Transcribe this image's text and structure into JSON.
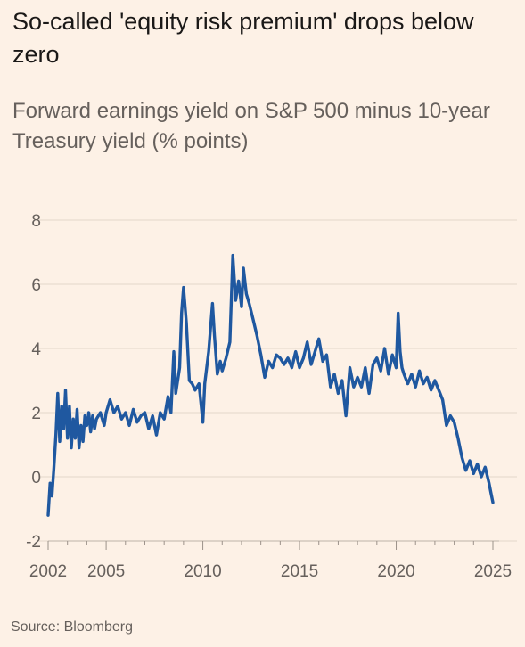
{
  "title": "So-called 'equity risk premium' drops below zero",
  "subtitle": "Forward earnings yield on S&P 500 minus 10-year Treasury yield (% points)",
  "source": "Source: Bloomberg",
  "colors": {
    "background": "#fdf1e6",
    "line": "#1f58a0",
    "grid": "#e3d7cb",
    "text": "#66605c"
  },
  "chart_data": {
    "type": "line",
    "title": "So-called 'equity risk premium' drops below zero",
    "subtitle": "Forward earnings yield on S&P 500 minus 10-year Treasury yield (% points)",
    "xlabel": "",
    "ylabel": "",
    "xlim": [
      2002,
      2025
    ],
    "ylim": [
      -2,
      8
    ],
    "yticks": [
      -2,
      0,
      2,
      4,
      6,
      8
    ],
    "xticks": [
      2002,
      2005,
      2010,
      2015,
      2020,
      2025
    ],
    "grid": true,
    "series": [
      {
        "x": [
          2002.0,
          2002.1,
          2002.2,
          2002.3,
          2002.4,
          2002.5,
          2002.6,
          2002.7,
          2002.8,
          2002.9,
          2003.0,
          2003.1,
          2003.2,
          2003.3,
          2003.4,
          2003.5,
          2003.6,
          2003.7,
          2003.8,
          2003.9,
          2004.0,
          2004.1,
          2004.2,
          2004.3,
          2004.4,
          2004.5,
          2004.7,
          2004.9,
          2005.0,
          2005.2,
          2005.4,
          2005.6,
          2005.8,
          2006.0,
          2006.2,
          2006.4,
          2006.6,
          2006.8,
          2007.0,
          2007.2,
          2007.4,
          2007.6,
          2007.8,
          2008.0,
          2008.2,
          2008.35,
          2008.5,
          2008.6,
          2008.8,
          2008.9,
          2009.0,
          2009.15,
          2009.3,
          2009.45,
          2009.6,
          2009.8,
          2010.0,
          2010.1,
          2010.3,
          2010.5,
          2010.6,
          2010.75,
          2010.9,
          2011.0,
          2011.2,
          2011.4,
          2011.55,
          2011.7,
          2011.85,
          2012.0,
          2012.1,
          2012.25,
          2012.4,
          2012.6,
          2012.8,
          2013.0,
          2013.2,
          2013.4,
          2013.6,
          2013.8,
          2014.0,
          2014.2,
          2014.4,
          2014.6,
          2014.8,
          2015.0,
          2015.2,
          2015.4,
          2015.6,
          2015.8,
          2016.0,
          2016.2,
          2016.4,
          2016.6,
          2016.8,
          2017.0,
          2017.2,
          2017.4,
          2017.6,
          2017.8,
          2018.0,
          2018.2,
          2018.4,
          2018.6,
          2018.8,
          2019.0,
          2019.2,
          2019.4,
          2019.6,
          2019.8,
          2020.0,
          2020.1,
          2020.2,
          2020.3,
          2020.4,
          2020.6,
          2020.8,
          2021.0,
          2021.2,
          2021.4,
          2021.6,
          2021.8,
          2022.0,
          2022.2,
          2022.4,
          2022.6,
          2022.8,
          2023.0,
          2023.2,
          2023.4,
          2023.6,
          2023.8,
          2024.0,
          2024.2,
          2024.4,
          2024.6,
          2024.8,
          2024.9,
          2025.0
        ],
        "y": [
          -1.2,
          -0.2,
          -0.6,
          0.3,
          1.3,
          2.6,
          1.1,
          2.2,
          1.5,
          2.7,
          1.2,
          2.2,
          0.9,
          1.8,
          1.2,
          2.1,
          0.9,
          1.6,
          1.1,
          1.9,
          1.6,
          2.0,
          1.4,
          1.9,
          1.5,
          1.8,
          2.0,
          1.6,
          2.0,
          2.4,
          2.0,
          2.2,
          1.8,
          2.0,
          1.6,
          2.1,
          1.7,
          1.9,
          2.0,
          1.5,
          1.9,
          1.3,
          2.0,
          1.8,
          2.5,
          2.0,
          3.9,
          2.6,
          3.4,
          5.1,
          5.9,
          4.8,
          3.0,
          2.9,
          2.7,
          2.9,
          1.7,
          2.9,
          3.9,
          5.4,
          4.4,
          3.2,
          3.6,
          3.3,
          3.7,
          4.2,
          6.9,
          5.5,
          6.1,
          5.3,
          6.5,
          5.7,
          5.4,
          4.9,
          4.4,
          3.8,
          3.1,
          3.6,
          3.4,
          3.8,
          3.7,
          3.5,
          3.7,
          3.4,
          3.9,
          3.4,
          3.7,
          4.2,
          3.5,
          3.9,
          4.3,
          3.6,
          3.8,
          2.8,
          3.2,
          2.6,
          3.0,
          1.9,
          3.4,
          2.8,
          3.1,
          2.8,
          3.4,
          2.6,
          3.5,
          3.7,
          3.3,
          4.0,
          3.2,
          3.8,
          3.4,
          5.1,
          3.9,
          3.4,
          3.2,
          2.9,
          3.2,
          2.8,
          3.3,
          2.9,
          3.1,
          2.7,
          3.0,
          2.7,
          2.4,
          1.6,
          1.9,
          1.7,
          1.2,
          0.6,
          0.2,
          0.5,
          0.1,
          0.4,
          0.0,
          0.3,
          -0.2,
          -0.5,
          -0.8
        ]
      }
    ]
  }
}
